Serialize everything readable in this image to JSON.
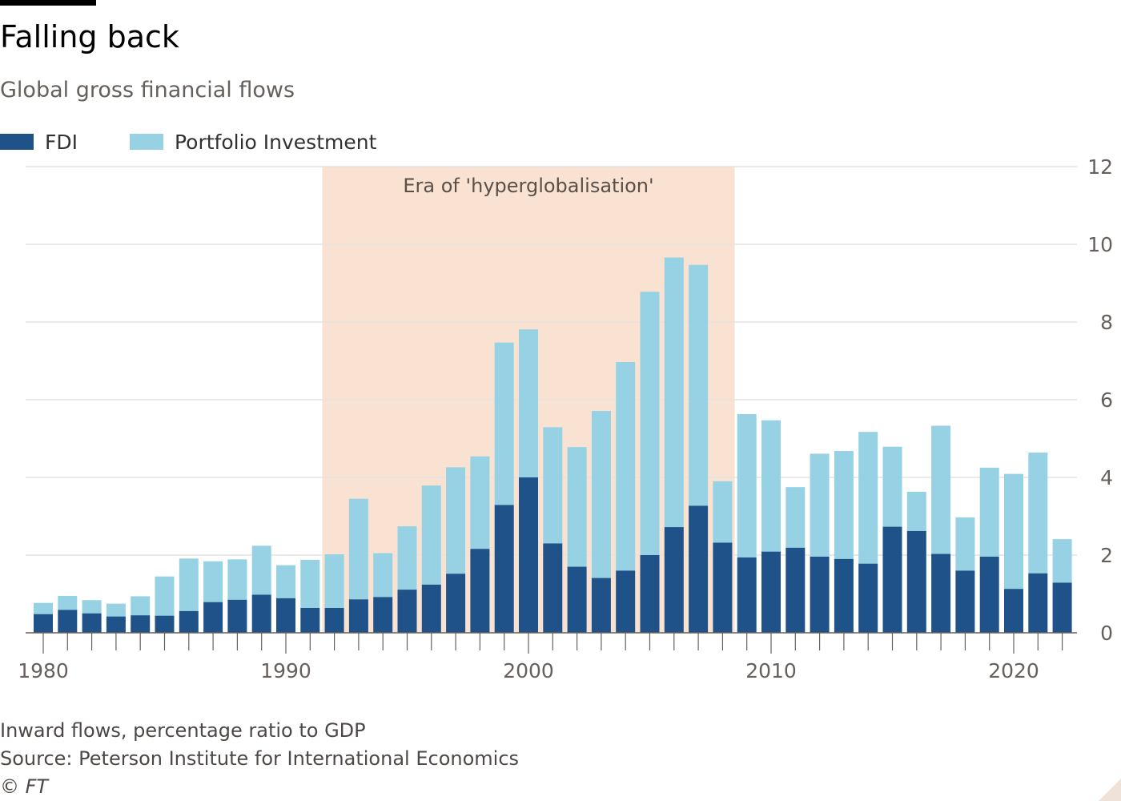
{
  "header": {
    "title": "Falling back",
    "subtitle": "Global gross financial flows"
  },
  "legend": {
    "fdi_label": "FDI",
    "portfolio_label": "Portfolio Investment"
  },
  "footer": {
    "note": "Inward flows, percentage ratio to GDP",
    "source": "Source: Peterson Institute for International Economics",
    "copyright": "© FT"
  },
  "colors": {
    "fdi": "#1f5289",
    "portfolio": "#96d2e4",
    "era_band": "#f9e2d2",
    "gridline": "#e6e2de",
    "axis": "#66605c"
  },
  "chart_data": {
    "type": "bar",
    "stacked": true,
    "x": [
      1980,
      1981,
      1982,
      1983,
      1984,
      1985,
      1986,
      1987,
      1988,
      1989,
      1990,
      1991,
      1992,
      1993,
      1994,
      1995,
      1996,
      1997,
      1998,
      1999,
      2000,
      2001,
      2002,
      2003,
      2004,
      2005,
      2006,
      2007,
      2008,
      2009,
      2010,
      2011,
      2012,
      2013,
      2014,
      2015,
      2016,
      2017,
      2018,
      2019,
      2020,
      2021,
      2022
    ],
    "series": [
      {
        "name": "FDI",
        "values": [
          0.48,
          0.59,
          0.5,
          0.42,
          0.45,
          0.44,
          0.56,
          0.79,
          0.85,
          0.98,
          0.89,
          0.64,
          0.64,
          0.86,
          0.92,
          1.11,
          1.24,
          1.52,
          2.16,
          3.29,
          4.0,
          2.3,
          1.7,
          1.41,
          1.6,
          2.0,
          2.72,
          3.27,
          2.32,
          1.94,
          2.09,
          2.19,
          1.96,
          1.9,
          1.78,
          2.73,
          2.62,
          2.03,
          1.6,
          1.96,
          1.13,
          1.53,
          1.29
        ]
      },
      {
        "name": "Portfolio Investment",
        "values": [
          0.29,
          0.36,
          0.34,
          0.33,
          0.49,
          1.01,
          1.35,
          1.05,
          1.04,
          1.26,
          0.85,
          1.24,
          1.38,
          2.59,
          1.13,
          1.63,
          2.55,
          2.74,
          2.38,
          4.18,
          3.81,
          2.99,
          3.08,
          4.3,
          5.37,
          6.78,
          6.94,
          6.2,
          1.58,
          3.69,
          3.38,
          1.56,
          2.65,
          2.78,
          3.39,
          2.06,
          1.01,
          3.3,
          1.37,
          2.29,
          2.96,
          3.11,
          1.12
        ]
      }
    ],
    "yticks": [
      0,
      2,
      4,
      6,
      8,
      10,
      12
    ],
    "ylim": [
      0,
      12
    ],
    "xticks": [
      1980,
      1990,
      2000,
      2010,
      2020
    ],
    "y_axis_side": "right",
    "grid": true,
    "legend_placement": "top-left",
    "annotations": [
      {
        "text": "Era of 'hyperglobalisation'",
        "x_start": 1991.5,
        "x_end": 2008.5
      }
    ]
  }
}
